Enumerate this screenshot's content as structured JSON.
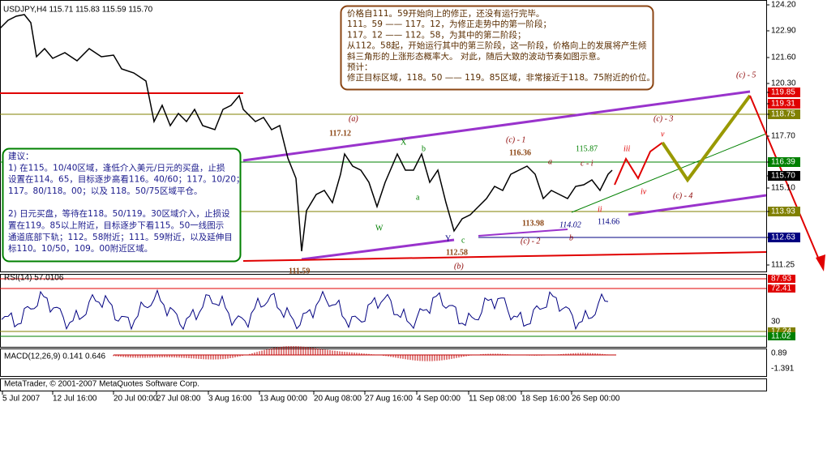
{
  "header": "USDJPY,H4  115.71 115.83 115.59 115.70",
  "price_axis": [
    "124.20",
    "122.90",
    "121.60",
    "120.30",
    "119.85",
    "119.31",
    "118.75",
    "117.70",
    "116.39",
    "115.70",
    "115.10",
    "113.93",
    "112.63",
    "111.25"
  ],
  "annotations": [
    "(a)",
    "117.12",
    "X",
    "b",
    "a",
    "W",
    "Y",
    "c",
    "112.58",
    "(b)",
    "111.59",
    "(c) - 1",
    "116.36",
    "a",
    "115.87",
    "c - i",
    "iii",
    "v",
    "(c) - 3",
    "(c) - 5",
    "iv",
    "(c) - 4",
    "ii",
    "113.98",
    "114.02",
    "114.66",
    "(c) - 2",
    "b"
  ],
  "note": {
    "lines": [
      "价格自111。59开始向上的修正，还没有运行完毕。",
      "111。59 —— 117。12，为修正走势中的第一阶段；",
      "117。12 —— 112。58，为其中的第二阶段；",
      "从112。58起，开始运行其中的第三阶段，这一阶段，价格向上的发展将产生倾",
      "斜三角形的上涨形态概率大。 对此，随后大致的波动节奏如图示意。",
      "预计：",
      "修正目标区域，118。50 —— 119。85区域，非常接近于118。75附近的价位。"
    ]
  },
  "advice": {
    "lines": [
      "建议：",
      "1) 在115。10/40区域，逢低介入美元/日元的买盘，止损",
      "设置在114。65，目标逐步高看116。40/60；117。10/20；",
      "117。80/118。00；以及 118。50/75区域平仓。",
      "2) 日元买盘，等待在118。50/119。30区域介入，止损设",
      "置在119。85以上附近，目标逐步下看115。50一线图示",
      "通道底部下轨；112。58附近；111。59附近，以及延伸目",
      "标110。10/50，109。00附近区域。"
    ]
  },
  "rsi": {
    "label": "RSI(14) 57.0106",
    "axis": [
      "87.93",
      "72.41",
      "30",
      "17.24",
      "11.02"
    ]
  },
  "macd": {
    "label": "MACD(12,26,9) 0.141 0.646",
    "axis": [
      "0.89",
      "-1.391"
    ]
  },
  "copyright": "MetaTrader, © 2001-2007 MetaQuotes Software Corp.",
  "time_axis": [
    "5 Jul 2007",
    "12 Jul 16:00",
    "20 Jul 00:00",
    "27 Jul 08:00",
    "3 Aug 16:00",
    "13 Aug 00:00",
    "20 Aug 08:00",
    "27 Aug 16:00",
    "4 Sep 00:00",
    "11 Sep 08:00",
    "18 Sep 16:00",
    "26 Sep 00:00"
  ]
}
